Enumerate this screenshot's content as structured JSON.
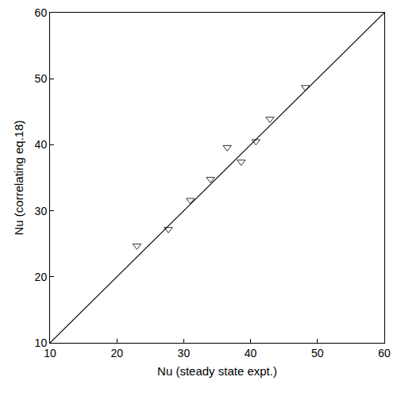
{
  "chart_data": {
    "type": "scatter",
    "xlabel": "Nu (steady state expt.)",
    "ylabel": "Nu (correlating eq.18)",
    "xlim": [
      10,
      60
    ],
    "ylim": [
      10,
      60
    ],
    "xticks": [
      10,
      20,
      30,
      40,
      50,
      60
    ],
    "yticks": [
      10,
      20,
      30,
      40,
      50,
      60
    ],
    "grid": false,
    "series": [
      {
        "type": "scatter",
        "marker": "triangle-down-open",
        "color": "#333333",
        "x": [
          23,
          27.7,
          31,
          34,
          36.5,
          38.6,
          40.8,
          42.9,
          48.2
        ],
        "values": [
          24.7,
          27.2,
          31.6,
          34.8,
          39.6,
          37.4,
          40.5,
          43.9,
          48.7
        ]
      },
      {
        "type": "line",
        "line_style": "solid",
        "color": "#000000",
        "x": [
          10,
          60
        ],
        "values": [
          10,
          60
        ]
      }
    ]
  }
}
